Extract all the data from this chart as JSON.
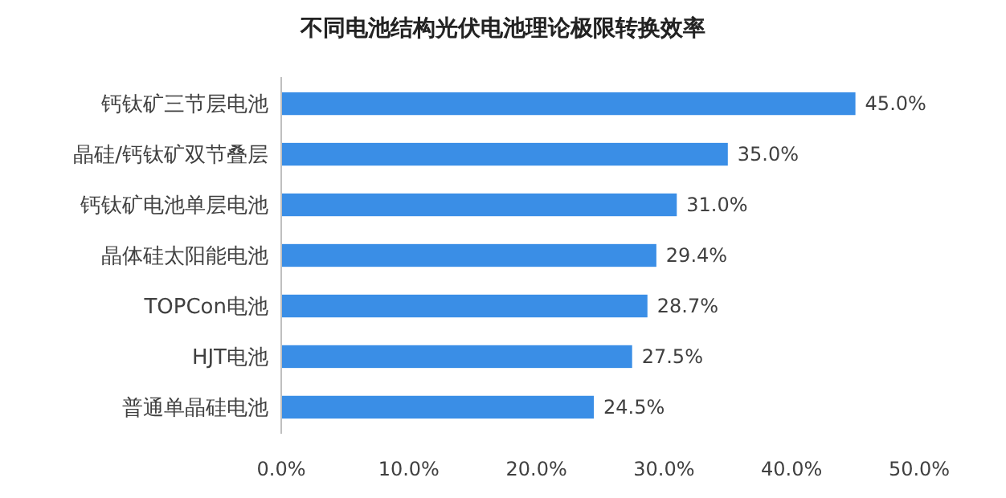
{
  "chart_data": {
    "type": "bar",
    "orientation": "horizontal",
    "title": "不同电池结构光伏电池理论极限转换效率",
    "categories": [
      "钙钛矿三节层电池",
      "晶硅/钙钛矿双节叠层",
      "钙钛矿电池单层电池",
      "晶体硅太阳能电池",
      "TOPCon电池",
      "HJT电池",
      "普通单晶硅电池"
    ],
    "values": [
      45.0,
      35.0,
      31.0,
      29.4,
      28.7,
      27.5,
      24.5
    ],
    "value_labels": [
      "45.0%",
      "35.0%",
      "31.0%",
      "29.4%",
      "28.7%",
      "27.5%",
      "24.5%"
    ],
    "color": "#3a8ee6",
    "xlim": [
      0,
      50
    ],
    "xticks": [
      {
        "value": 0,
        "label": "0.0%"
      },
      {
        "value": 10,
        "label": "10.0%"
      },
      {
        "value": 20,
        "label": "20.0%"
      },
      {
        "value": 30,
        "label": "30.0%"
      },
      {
        "value": 40,
        "label": "40.0%"
      },
      {
        "value": 50,
        "label": "50.0%"
      }
    ],
    "grid": false
  }
}
